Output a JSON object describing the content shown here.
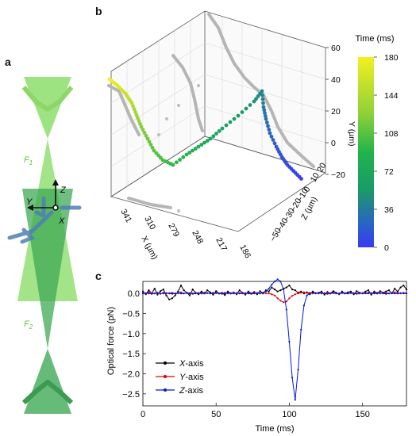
{
  "panels": {
    "a": "a",
    "b": "b",
    "c": "c"
  },
  "panel_a": {
    "beam_top_label": "F",
    "beam_top_sub": "1",
    "beam_bottom_label": "F",
    "beam_bottom_sub": "2",
    "axis_z": "Z",
    "axis_y": "Y",
    "axis_x": "X",
    "colors": {
      "beam_light": "#7ed957",
      "beam_dark": "#3faa55",
      "arrow": "#4f7fb5"
    }
  },
  "panel_b": {
    "x_axis_label": "X (µm)",
    "y_axis_label": "Y (µm)",
    "z_axis_label": "Z (µm)",
    "x_ticks": [
      "341",
      "310",
      "279",
      "248",
      "217",
      "186"
    ],
    "y_ticks": [
      "60",
      "40",
      "20",
      "0",
      "−20"
    ],
    "z_ticks": [
      "20",
      "10",
      "0",
      "−10",
      "−20",
      "−30",
      "−40",
      "−50"
    ],
    "colorbar": {
      "title": "Time (ms)",
      "ticks": [
        "180",
        "144",
        "108",
        "72",
        "36",
        "0"
      ],
      "colors": [
        "#f2f020",
        "#8ed03a",
        "#21b44a",
        "#1a9a6a",
        "#2a62c8",
        "#3a3af0"
      ]
    }
  },
  "chart_data": {
    "type": "line",
    "xlabel": "Time (ms)",
    "ylabel": "Optical force (pN)",
    "xlim": [
      0,
      180
    ],
    "ylim": [
      -2.8,
      0.3
    ],
    "x_ticks": [
      "0",
      "50",
      "100",
      "150"
    ],
    "y_ticks": [
      "0.0",
      "−0.5",
      "−1.0",
      "−1.5",
      "−2.0",
      "−2.5"
    ],
    "legend_position": "bottom-left",
    "series": [
      {
        "name": "X-axis",
        "color": "#000000",
        "x": [
          0,
          2,
          4,
          6,
          8,
          10,
          12,
          14,
          16,
          18,
          20,
          22,
          24,
          26,
          28,
          30,
          32,
          34,
          36,
          38,
          40,
          42,
          44,
          46,
          48,
          50,
          52,
          54,
          56,
          58,
          60,
          62,
          64,
          66,
          68,
          70,
          72,
          74,
          76,
          78,
          80,
          82,
          84,
          86,
          88,
          90,
          92,
          94,
          96,
          98,
          100,
          102,
          104,
          106,
          108,
          110,
          112,
          114,
          116,
          118,
          120,
          122,
          124,
          126,
          128,
          130,
          132,
          134,
          136,
          138,
          140,
          142,
          144,
          146,
          148,
          150,
          152,
          154,
          156,
          158,
          160,
          162,
          164,
          166,
          168,
          170,
          172,
          174,
          176,
          178,
          180
        ],
        "values": [
          0.05,
          -0.02,
          0.08,
          0.0,
          0.12,
          -0.03,
          0.06,
          0.1,
          -0.05,
          -0.15,
          -0.12,
          -0.05,
          0.05,
          0.2,
          0.08,
          0.02,
          -0.05,
          0.1,
          0.02,
          -0.02,
          0.05,
          0.0,
          0.08,
          0.03,
          -0.03,
          0.06,
          0.0,
          0.02,
          -0.04,
          0.05,
          0.0,
          0.03,
          -0.02,
          0.08,
          0.02,
          -0.03,
          0.05,
          0.0,
          0.04,
          -0.02,
          0.06,
          0.0,
          0.08,
          0.05,
          0.15,
          0.1,
          0.05,
          0.08,
          0.12,
          0.15,
          0.2,
          0.1,
          0.08,
          0.02,
          0.05,
          0.0,
          0.03,
          -0.02,
          0.05,
          0.0,
          0.02,
          0.05,
          -0.03,
          0.04,
          0.0,
          0.06,
          0.02,
          -0.02,
          0.05,
          0.0,
          0.03,
          0.05,
          -0.02,
          0.06,
          0.02,
          0.0,
          0.05,
          0.08,
          -0.03,
          0.05,
          0.0,
          0.06,
          0.02,
          0.05,
          0.08,
          0.0,
          0.12,
          0.05,
          0.15,
          0.2,
          0.1
        ]
      },
      {
        "name": "Y-axis",
        "color": "#e00000",
        "x": [
          0,
          2,
          4,
          6,
          8,
          10,
          12,
          14,
          16,
          18,
          20,
          22,
          24,
          26,
          28,
          30,
          32,
          34,
          36,
          38,
          40,
          42,
          44,
          46,
          48,
          50,
          52,
          54,
          56,
          58,
          60,
          62,
          64,
          66,
          68,
          70,
          72,
          74,
          76,
          78,
          80,
          82,
          84,
          86,
          88,
          90,
          92,
          94,
          96,
          98,
          100,
          102,
          104,
          106,
          108,
          110,
          112,
          114,
          116,
          118,
          120,
          122,
          124,
          126,
          128,
          130,
          132,
          134,
          136,
          138,
          140,
          142,
          144,
          146,
          148,
          150,
          152,
          154,
          156,
          158,
          160,
          162,
          164,
          166,
          168,
          170,
          172,
          174,
          176,
          178,
          180
        ],
        "values": [
          0.02,
          0.0,
          0.03,
          0.01,
          0.0,
          0.02,
          -0.01,
          0.02,
          0.0,
          0.01,
          0.02,
          0.0,
          0.01,
          0.03,
          0.0,
          0.02,
          0.01,
          0.0,
          0.02,
          0.01,
          0.0,
          0.02,
          0.01,
          0.0,
          0.02,
          0.01,
          0.0,
          0.01,
          0.02,
          0.0,
          0.01,
          0.02,
          0.0,
          0.01,
          0.02,
          0.0,
          0.01,
          0.0,
          0.02,
          0.01,
          0.0,
          0.02,
          0.0,
          0.0,
          -0.02,
          -0.05,
          -0.12,
          -0.18,
          -0.22,
          -0.2,
          -0.12,
          -0.06,
          -0.02,
          0.0,
          0.02,
          0.03,
          0.01,
          0.02,
          0.0,
          0.01,
          0.02,
          0.0,
          0.01,
          0.02,
          0.0,
          0.02,
          0.01,
          0.0,
          0.02,
          0.01,
          0.0,
          0.02,
          0.01,
          0.0,
          0.02,
          0.0,
          0.01,
          0.02,
          0.0,
          0.01,
          0.02,
          0.0,
          0.01,
          0.02,
          0.0,
          0.01,
          0.03,
          0.02,
          0.0,
          0.02,
          0.01
        ]
      },
      {
        "name": "Z-axis",
        "color": "#0018e0",
        "x": [
          0,
          2,
          4,
          6,
          8,
          10,
          12,
          14,
          16,
          18,
          20,
          22,
          24,
          26,
          28,
          30,
          32,
          34,
          36,
          38,
          40,
          42,
          44,
          46,
          48,
          50,
          52,
          54,
          56,
          58,
          60,
          62,
          64,
          66,
          68,
          70,
          72,
          74,
          76,
          78,
          80,
          82,
          84,
          86,
          88,
          90,
          92,
          94,
          96,
          98,
          100,
          102,
          104,
          106,
          108,
          110,
          112,
          114,
          116,
          118,
          120,
          122,
          124,
          126,
          128,
          130,
          132,
          134,
          136,
          138,
          140,
          142,
          144,
          146,
          148,
          150,
          152,
          154,
          156,
          158,
          160,
          162,
          164,
          166,
          168,
          170,
          172,
          174,
          176,
          178,
          180
        ],
        "values": [
          0.0,
          0.01,
          0.0,
          -0.01,
          0.0,
          0.01,
          0.0,
          0.0,
          0.01,
          0.0,
          -0.01,
          0.0,
          0.01,
          0.0,
          0.0,
          0.01,
          0.0,
          -0.01,
          0.0,
          0.01,
          0.0,
          0.0,
          0.01,
          0.0,
          0.0,
          0.01,
          0.0,
          -0.01,
          0.0,
          0.01,
          0.0,
          0.0,
          0.01,
          0.0,
          0.0,
          0.01,
          0.0,
          -0.01,
          0.0,
          0.01,
          0.0,
          0.02,
          0.05,
          0.12,
          0.22,
          0.3,
          0.35,
          0.3,
          0.1,
          -0.4,
          -1.2,
          -2.1,
          -2.65,
          -1.9,
          -0.9,
          -0.3,
          -0.05,
          0.0,
          0.02,
          0.01,
          0.0,
          0.01,
          0.0,
          -0.01,
          0.0,
          0.01,
          0.0,
          0.0,
          0.01,
          0.0,
          0.0,
          0.01,
          0.0,
          -0.01,
          0.0,
          0.01,
          0.0,
          0.0,
          0.01,
          0.0,
          0.0,
          0.01,
          0.0,
          -0.01,
          0.0,
          0.01,
          0.0,
          0.0,
          0.01,
          0.0,
          0.0
        ]
      }
    ]
  }
}
